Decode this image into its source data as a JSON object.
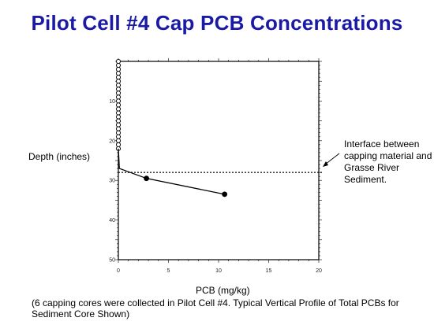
{
  "title": "Pilot Cell #4 Cap PCB Concentrations",
  "annotation": "Interface between capping material and Grasse River Sediment.",
  "caption": "(6 capping cores were collected in Pilot Cell #4. Typical Vertical Profile of Total PCBs for Sediment Core Shown)",
  "chart_data": {
    "type": "line",
    "xlabel": "PCB (mg/kg)",
    "ylabel": "Depth (inches)",
    "xlim": [
      0,
      20
    ],
    "ylim": [
      0,
      50
    ],
    "y_inverted": true,
    "x_ticks": [
      0,
      5,
      10,
      15,
      20
    ],
    "y_ticks": [
      10,
      20,
      30,
      40,
      50
    ],
    "series": [
      {
        "x": [
          0,
          0,
          0,
          0,
          0,
          0,
          0,
          0,
          0,
          0,
          0,
          0,
          0,
          0,
          0,
          0,
          0,
          0,
          0,
          0,
          0,
          0,
          0
        ],
        "y": [
          0,
          1,
          2,
          3,
          4,
          5,
          6,
          7,
          8,
          9,
          10,
          11,
          12,
          13,
          14,
          15,
          16,
          17,
          18,
          19,
          20,
          21,
          22
        ],
        "marker": "open-circle"
      },
      {
        "x": [
          0,
          0.1,
          2.8,
          10.6
        ],
        "y": [
          22,
          27,
          29.5,
          33.5
        ],
        "marker": "filled-circle"
      }
    ],
    "interface_depth": 28,
    "grid": false
  }
}
